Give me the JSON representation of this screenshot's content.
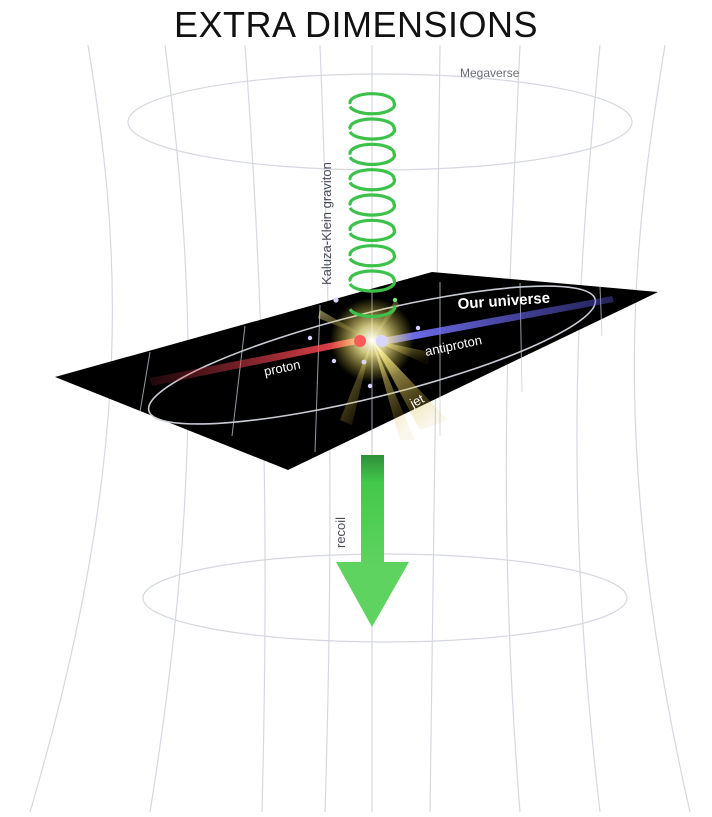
{
  "slide": {
    "title": "EXTRA DIMENSIONS"
  },
  "diagram": {
    "labels": {
      "megaverse": "Megaverse",
      "graviton": "Kaluza-Klein graviton",
      "our_universe": "Our universe",
      "proton": "proton",
      "antiproton": "antiproton",
      "jet": "jet",
      "recoil": "recoil"
    },
    "colors": {
      "background": "#ffffff",
      "grid": "#d5d8e0",
      "brane": "#000000",
      "graviton": "#3cc24a",
      "proton_beam": "#d8384a",
      "antiproton_beam": "#6a66e0",
      "jet": "#e8d23a",
      "recoil_arrow": "#43c84a"
    }
  }
}
